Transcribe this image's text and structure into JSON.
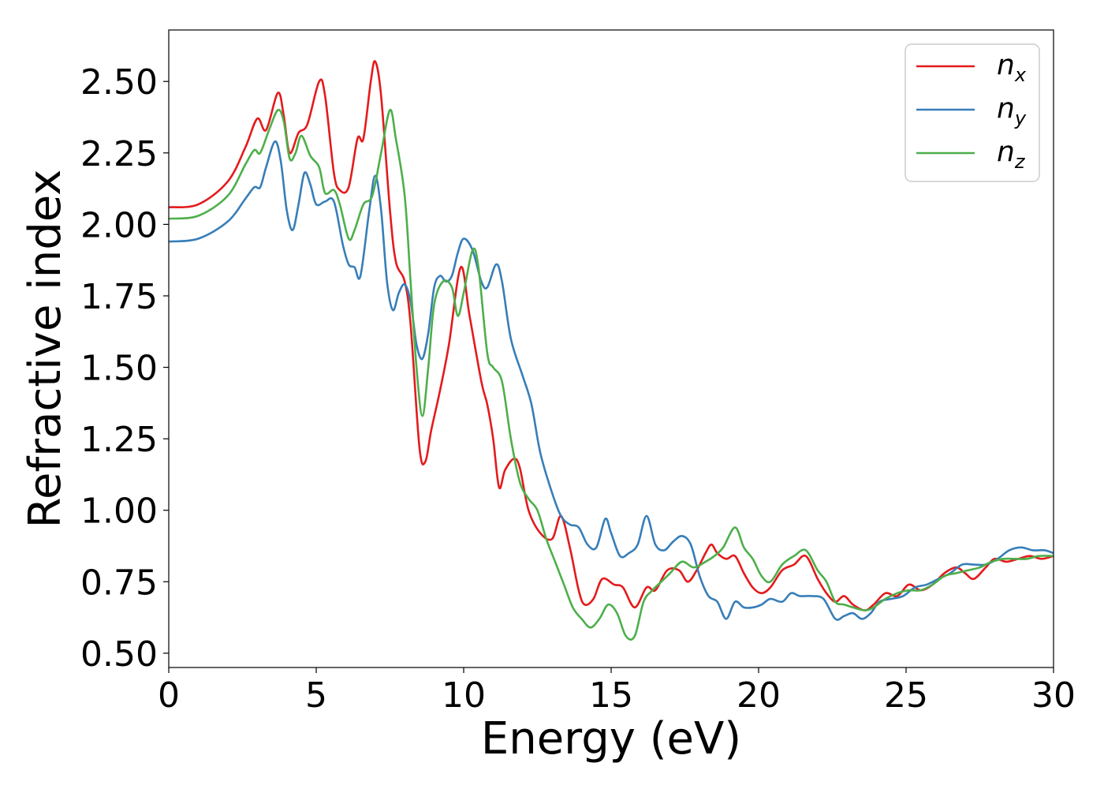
{
  "chart_data": {
    "type": "line",
    "xlabel": "Energy (eV)",
    "ylabel": "Refractive index",
    "xlim": [
      0,
      30
    ],
    "ylim": [
      0.45,
      2.68
    ],
    "x_ticks": [
      {
        "value": 0,
        "label": "0"
      },
      {
        "value": 5,
        "label": "5"
      },
      {
        "value": 10,
        "label": "10"
      },
      {
        "value": 15,
        "label": "15"
      },
      {
        "value": 20,
        "label": "20"
      },
      {
        "value": 25,
        "label": "25"
      },
      {
        "value": 30,
        "label": "30"
      }
    ],
    "y_ticks": [
      {
        "value": 0.5,
        "label": "0.50"
      },
      {
        "value": 0.75,
        "label": "0.75"
      },
      {
        "value": 1.0,
        "label": "1.00"
      },
      {
        "value": 1.25,
        "label": "1.25"
      },
      {
        "value": 1.5,
        "label": "1.50"
      },
      {
        "value": 1.75,
        "label": "1.75"
      },
      {
        "value": 2.0,
        "label": "2.00"
      },
      {
        "value": 2.25,
        "label": "2.25"
      },
      {
        "value": 2.5,
        "label": "2.50"
      }
    ],
    "grid": false,
    "legend_position": "top-right",
    "series": [
      {
        "name": "n_x",
        "label_main": "n",
        "label_sub": "x",
        "color": "#e41a1c",
        "points": [
          [
            0,
            2.06
          ],
          [
            1,
            2.07
          ],
          [
            2,
            2.15
          ],
          [
            2.6,
            2.27
          ],
          [
            3.0,
            2.37
          ],
          [
            3.3,
            2.33
          ],
          [
            3.7,
            2.46
          ],
          [
            3.9,
            2.38
          ],
          [
            4.1,
            2.25
          ],
          [
            4.4,
            2.32
          ],
          [
            4.7,
            2.35
          ],
          [
            5.1,
            2.5
          ],
          [
            5.3,
            2.45
          ],
          [
            5.6,
            2.18
          ],
          [
            5.8,
            2.12
          ],
          [
            6.1,
            2.13
          ],
          [
            6.4,
            2.3
          ],
          [
            6.6,
            2.3
          ],
          [
            6.85,
            2.5
          ],
          [
            7.0,
            2.57
          ],
          [
            7.2,
            2.45
          ],
          [
            7.5,
            2.05
          ],
          [
            7.7,
            1.87
          ],
          [
            8.0,
            1.8
          ],
          [
            8.2,
            1.65
          ],
          [
            8.5,
            1.22
          ],
          [
            8.7,
            1.17
          ],
          [
            8.9,
            1.28
          ],
          [
            9.2,
            1.42
          ],
          [
            9.5,
            1.58
          ],
          [
            9.9,
            1.85
          ],
          [
            10.2,
            1.68
          ],
          [
            10.6,
            1.45
          ],
          [
            10.8,
            1.37
          ],
          [
            11.0,
            1.25
          ],
          [
            11.2,
            1.08
          ],
          [
            11.4,
            1.14
          ],
          [
            11.7,
            1.18
          ],
          [
            11.9,
            1.15
          ],
          [
            12.2,
            1.0
          ],
          [
            12.6,
            0.92
          ],
          [
            13.0,
            0.9
          ],
          [
            13.3,
            0.98
          ],
          [
            13.6,
            0.87
          ],
          [
            13.9,
            0.72
          ],
          [
            14.1,
            0.67
          ],
          [
            14.4,
            0.69
          ],
          [
            14.7,
            0.76
          ],
          [
            15.1,
            0.74
          ],
          [
            15.4,
            0.73
          ],
          [
            15.8,
            0.66
          ],
          [
            16.2,
            0.73
          ],
          [
            16.5,
            0.72
          ],
          [
            16.9,
            0.79
          ],
          [
            17.3,
            0.79
          ],
          [
            17.6,
            0.75
          ],
          [
            17.9,
            0.79
          ],
          [
            18.2,
            0.85
          ],
          [
            18.4,
            0.88
          ],
          [
            18.6,
            0.85
          ],
          [
            18.9,
            0.83
          ],
          [
            19.2,
            0.84
          ],
          [
            19.5,
            0.78
          ],
          [
            19.8,
            0.73
          ],
          [
            20.1,
            0.71
          ],
          [
            20.4,
            0.73
          ],
          [
            20.8,
            0.79
          ],
          [
            21.2,
            0.81
          ],
          [
            21.6,
            0.84
          ],
          [
            22.0,
            0.76
          ],
          [
            22.3,
            0.71
          ],
          [
            22.6,
            0.68
          ],
          [
            22.9,
            0.7
          ],
          [
            23.2,
            0.67
          ],
          [
            23.6,
            0.65
          ],
          [
            23.9,
            0.67
          ],
          [
            24.3,
            0.71
          ],
          [
            24.7,
            0.7
          ],
          [
            25.1,
            0.74
          ],
          [
            25.5,
            0.72
          ],
          [
            25.9,
            0.74
          ],
          [
            26.3,
            0.78
          ],
          [
            26.7,
            0.8
          ],
          [
            27.0,
            0.78
          ],
          [
            27.3,
            0.76
          ],
          [
            27.7,
            0.8
          ],
          [
            28.0,
            0.83
          ],
          [
            28.4,
            0.82
          ],
          [
            28.8,
            0.83
          ],
          [
            29.2,
            0.84
          ],
          [
            29.6,
            0.83
          ],
          [
            30.0,
            0.84
          ]
        ]
      },
      {
        "name": "n_y",
        "label_main": "n",
        "label_sub": "y",
        "color": "#377eb8",
        "points": [
          [
            0,
            1.94
          ],
          [
            1,
            1.95
          ],
          [
            2,
            2.01
          ],
          [
            2.6,
            2.09
          ],
          [
            2.9,
            2.13
          ],
          [
            3.1,
            2.13
          ],
          [
            3.3,
            2.2
          ],
          [
            3.6,
            2.29
          ],
          [
            3.8,
            2.22
          ],
          [
            4.0,
            2.05
          ],
          [
            4.2,
            1.98
          ],
          [
            4.4,
            2.07
          ],
          [
            4.6,
            2.18
          ],
          [
            4.8,
            2.14
          ],
          [
            5.0,
            2.07
          ],
          [
            5.3,
            2.08
          ],
          [
            5.6,
            2.08
          ],
          [
            5.9,
            1.93
          ],
          [
            6.1,
            1.86
          ],
          [
            6.3,
            1.85
          ],
          [
            6.5,
            1.82
          ],
          [
            6.8,
            2.05
          ],
          [
            7.0,
            2.17
          ],
          [
            7.2,
            2.05
          ],
          [
            7.4,
            1.8
          ],
          [
            7.6,
            1.7
          ],
          [
            7.8,
            1.76
          ],
          [
            8.0,
            1.79
          ],
          [
            8.2,
            1.73
          ],
          [
            8.4,
            1.58
          ],
          [
            8.6,
            1.53
          ],
          [
            8.8,
            1.62
          ],
          [
            9.0,
            1.78
          ],
          [
            9.2,
            1.82
          ],
          [
            9.4,
            1.8
          ],
          [
            9.6,
            1.82
          ],
          [
            9.8,
            1.9
          ],
          [
            10.0,
            1.95
          ],
          [
            10.3,
            1.91
          ],
          [
            10.6,
            1.8
          ],
          [
            10.8,
            1.78
          ],
          [
            11.1,
            1.86
          ],
          [
            11.3,
            1.8
          ],
          [
            11.6,
            1.6
          ],
          [
            12.0,
            1.47
          ],
          [
            12.3,
            1.37
          ],
          [
            12.6,
            1.2
          ],
          [
            13.0,
            1.06
          ],
          [
            13.3,
            0.98
          ],
          [
            13.6,
            0.95
          ],
          [
            13.9,
            0.94
          ],
          [
            14.2,
            0.88
          ],
          [
            14.5,
            0.87
          ],
          [
            14.8,
            0.97
          ],
          [
            15.0,
            0.92
          ],
          [
            15.3,
            0.84
          ],
          [
            15.6,
            0.85
          ],
          [
            15.9,
            0.88
          ],
          [
            16.2,
            0.98
          ],
          [
            16.5,
            0.88
          ],
          [
            16.8,
            0.86
          ],
          [
            17.1,
            0.89
          ],
          [
            17.4,
            0.91
          ],
          [
            17.7,
            0.88
          ],
          [
            18.0,
            0.77
          ],
          [
            18.3,
            0.7
          ],
          [
            18.6,
            0.68
          ],
          [
            18.9,
            0.62
          ],
          [
            19.2,
            0.68
          ],
          [
            19.5,
            0.66
          ],
          [
            19.8,
            0.66
          ],
          [
            20.1,
            0.67
          ],
          [
            20.4,
            0.69
          ],
          [
            20.8,
            0.68
          ],
          [
            21.1,
            0.71
          ],
          [
            21.4,
            0.7
          ],
          [
            21.8,
            0.7
          ],
          [
            22.2,
            0.69
          ],
          [
            22.6,
            0.62
          ],
          [
            22.9,
            0.63
          ],
          [
            23.2,
            0.64
          ],
          [
            23.5,
            0.62
          ],
          [
            23.8,
            0.64
          ],
          [
            24.1,
            0.68
          ],
          [
            24.5,
            0.69
          ],
          [
            24.9,
            0.7
          ],
          [
            25.3,
            0.73
          ],
          [
            25.7,
            0.74
          ],
          [
            26.1,
            0.76
          ],
          [
            26.5,
            0.78
          ],
          [
            26.9,
            0.81
          ],
          [
            27.3,
            0.81
          ],
          [
            27.7,
            0.81
          ],
          [
            28.1,
            0.83
          ],
          [
            28.5,
            0.86
          ],
          [
            28.9,
            0.87
          ],
          [
            29.3,
            0.86
          ],
          [
            29.7,
            0.86
          ],
          [
            30.0,
            0.85
          ]
        ]
      },
      {
        "name": "n_z",
        "label_main": "n",
        "label_sub": "z",
        "color": "#4daf4a",
        "points": [
          [
            0,
            2.02
          ],
          [
            1,
            2.03
          ],
          [
            2,
            2.1
          ],
          [
            2.6,
            2.21
          ],
          [
            2.9,
            2.26
          ],
          [
            3.1,
            2.25
          ],
          [
            3.4,
            2.33
          ],
          [
            3.7,
            2.4
          ],
          [
            3.9,
            2.36
          ],
          [
            4.1,
            2.23
          ],
          [
            4.3,
            2.25
          ],
          [
            4.5,
            2.31
          ],
          [
            4.8,
            2.24
          ],
          [
            5.1,
            2.2
          ],
          [
            5.3,
            2.11
          ],
          [
            5.6,
            2.12
          ],
          [
            5.8,
            2.07
          ],
          [
            6.1,
            1.95
          ],
          [
            6.3,
            1.98
          ],
          [
            6.6,
            2.07
          ],
          [
            6.9,
            2.1
          ],
          [
            7.2,
            2.25
          ],
          [
            7.5,
            2.4
          ],
          [
            7.7,
            2.3
          ],
          [
            8.0,
            2.1
          ],
          [
            8.2,
            1.8
          ],
          [
            8.4,
            1.5
          ],
          [
            8.6,
            1.33
          ],
          [
            8.8,
            1.5
          ],
          [
            9.0,
            1.72
          ],
          [
            9.3,
            1.8
          ],
          [
            9.6,
            1.78
          ],
          [
            9.8,
            1.68
          ],
          [
            10.0,
            1.76
          ],
          [
            10.3,
            1.91
          ],
          [
            10.5,
            1.85
          ],
          [
            10.8,
            1.55
          ],
          [
            11.0,
            1.5
          ],
          [
            11.3,
            1.45
          ],
          [
            11.6,
            1.25
          ],
          [
            11.9,
            1.1
          ],
          [
            12.2,
            1.04
          ],
          [
            12.5,
            1.0
          ],
          [
            12.8,
            0.9
          ],
          [
            13.1,
            0.82
          ],
          [
            13.4,
            0.74
          ],
          [
            13.7,
            0.66
          ],
          [
            14.0,
            0.62
          ],
          [
            14.3,
            0.59
          ],
          [
            14.6,
            0.62
          ],
          [
            14.9,
            0.67
          ],
          [
            15.2,
            0.64
          ],
          [
            15.5,
            0.56
          ],
          [
            15.8,
            0.56
          ],
          [
            16.1,
            0.68
          ],
          [
            16.4,
            0.72
          ],
          [
            16.7,
            0.75
          ],
          [
            17.0,
            0.78
          ],
          [
            17.4,
            0.82
          ],
          [
            17.8,
            0.8
          ],
          [
            18.2,
            0.82
          ],
          [
            18.5,
            0.84
          ],
          [
            18.8,
            0.87
          ],
          [
            19.2,
            0.94
          ],
          [
            19.5,
            0.87
          ],
          [
            19.8,
            0.83
          ],
          [
            20.1,
            0.77
          ],
          [
            20.4,
            0.75
          ],
          [
            20.8,
            0.81
          ],
          [
            21.2,
            0.84
          ],
          [
            21.6,
            0.86
          ],
          [
            22.0,
            0.79
          ],
          [
            22.3,
            0.75
          ],
          [
            22.6,
            0.68
          ],
          [
            22.9,
            0.67
          ],
          [
            23.2,
            0.66
          ],
          [
            23.6,
            0.65
          ],
          [
            23.9,
            0.66
          ],
          [
            24.3,
            0.69
          ],
          [
            24.7,
            0.71
          ],
          [
            25.1,
            0.72
          ],
          [
            25.5,
            0.72
          ],
          [
            25.9,
            0.74
          ],
          [
            26.3,
            0.77
          ],
          [
            26.7,
            0.78
          ],
          [
            27.1,
            0.79
          ],
          [
            27.5,
            0.8
          ],
          [
            27.9,
            0.82
          ],
          [
            28.3,
            0.83
          ],
          [
            28.7,
            0.83
          ],
          [
            29.1,
            0.83
          ],
          [
            29.5,
            0.84
          ],
          [
            30.0,
            0.84
          ]
        ]
      }
    ]
  }
}
